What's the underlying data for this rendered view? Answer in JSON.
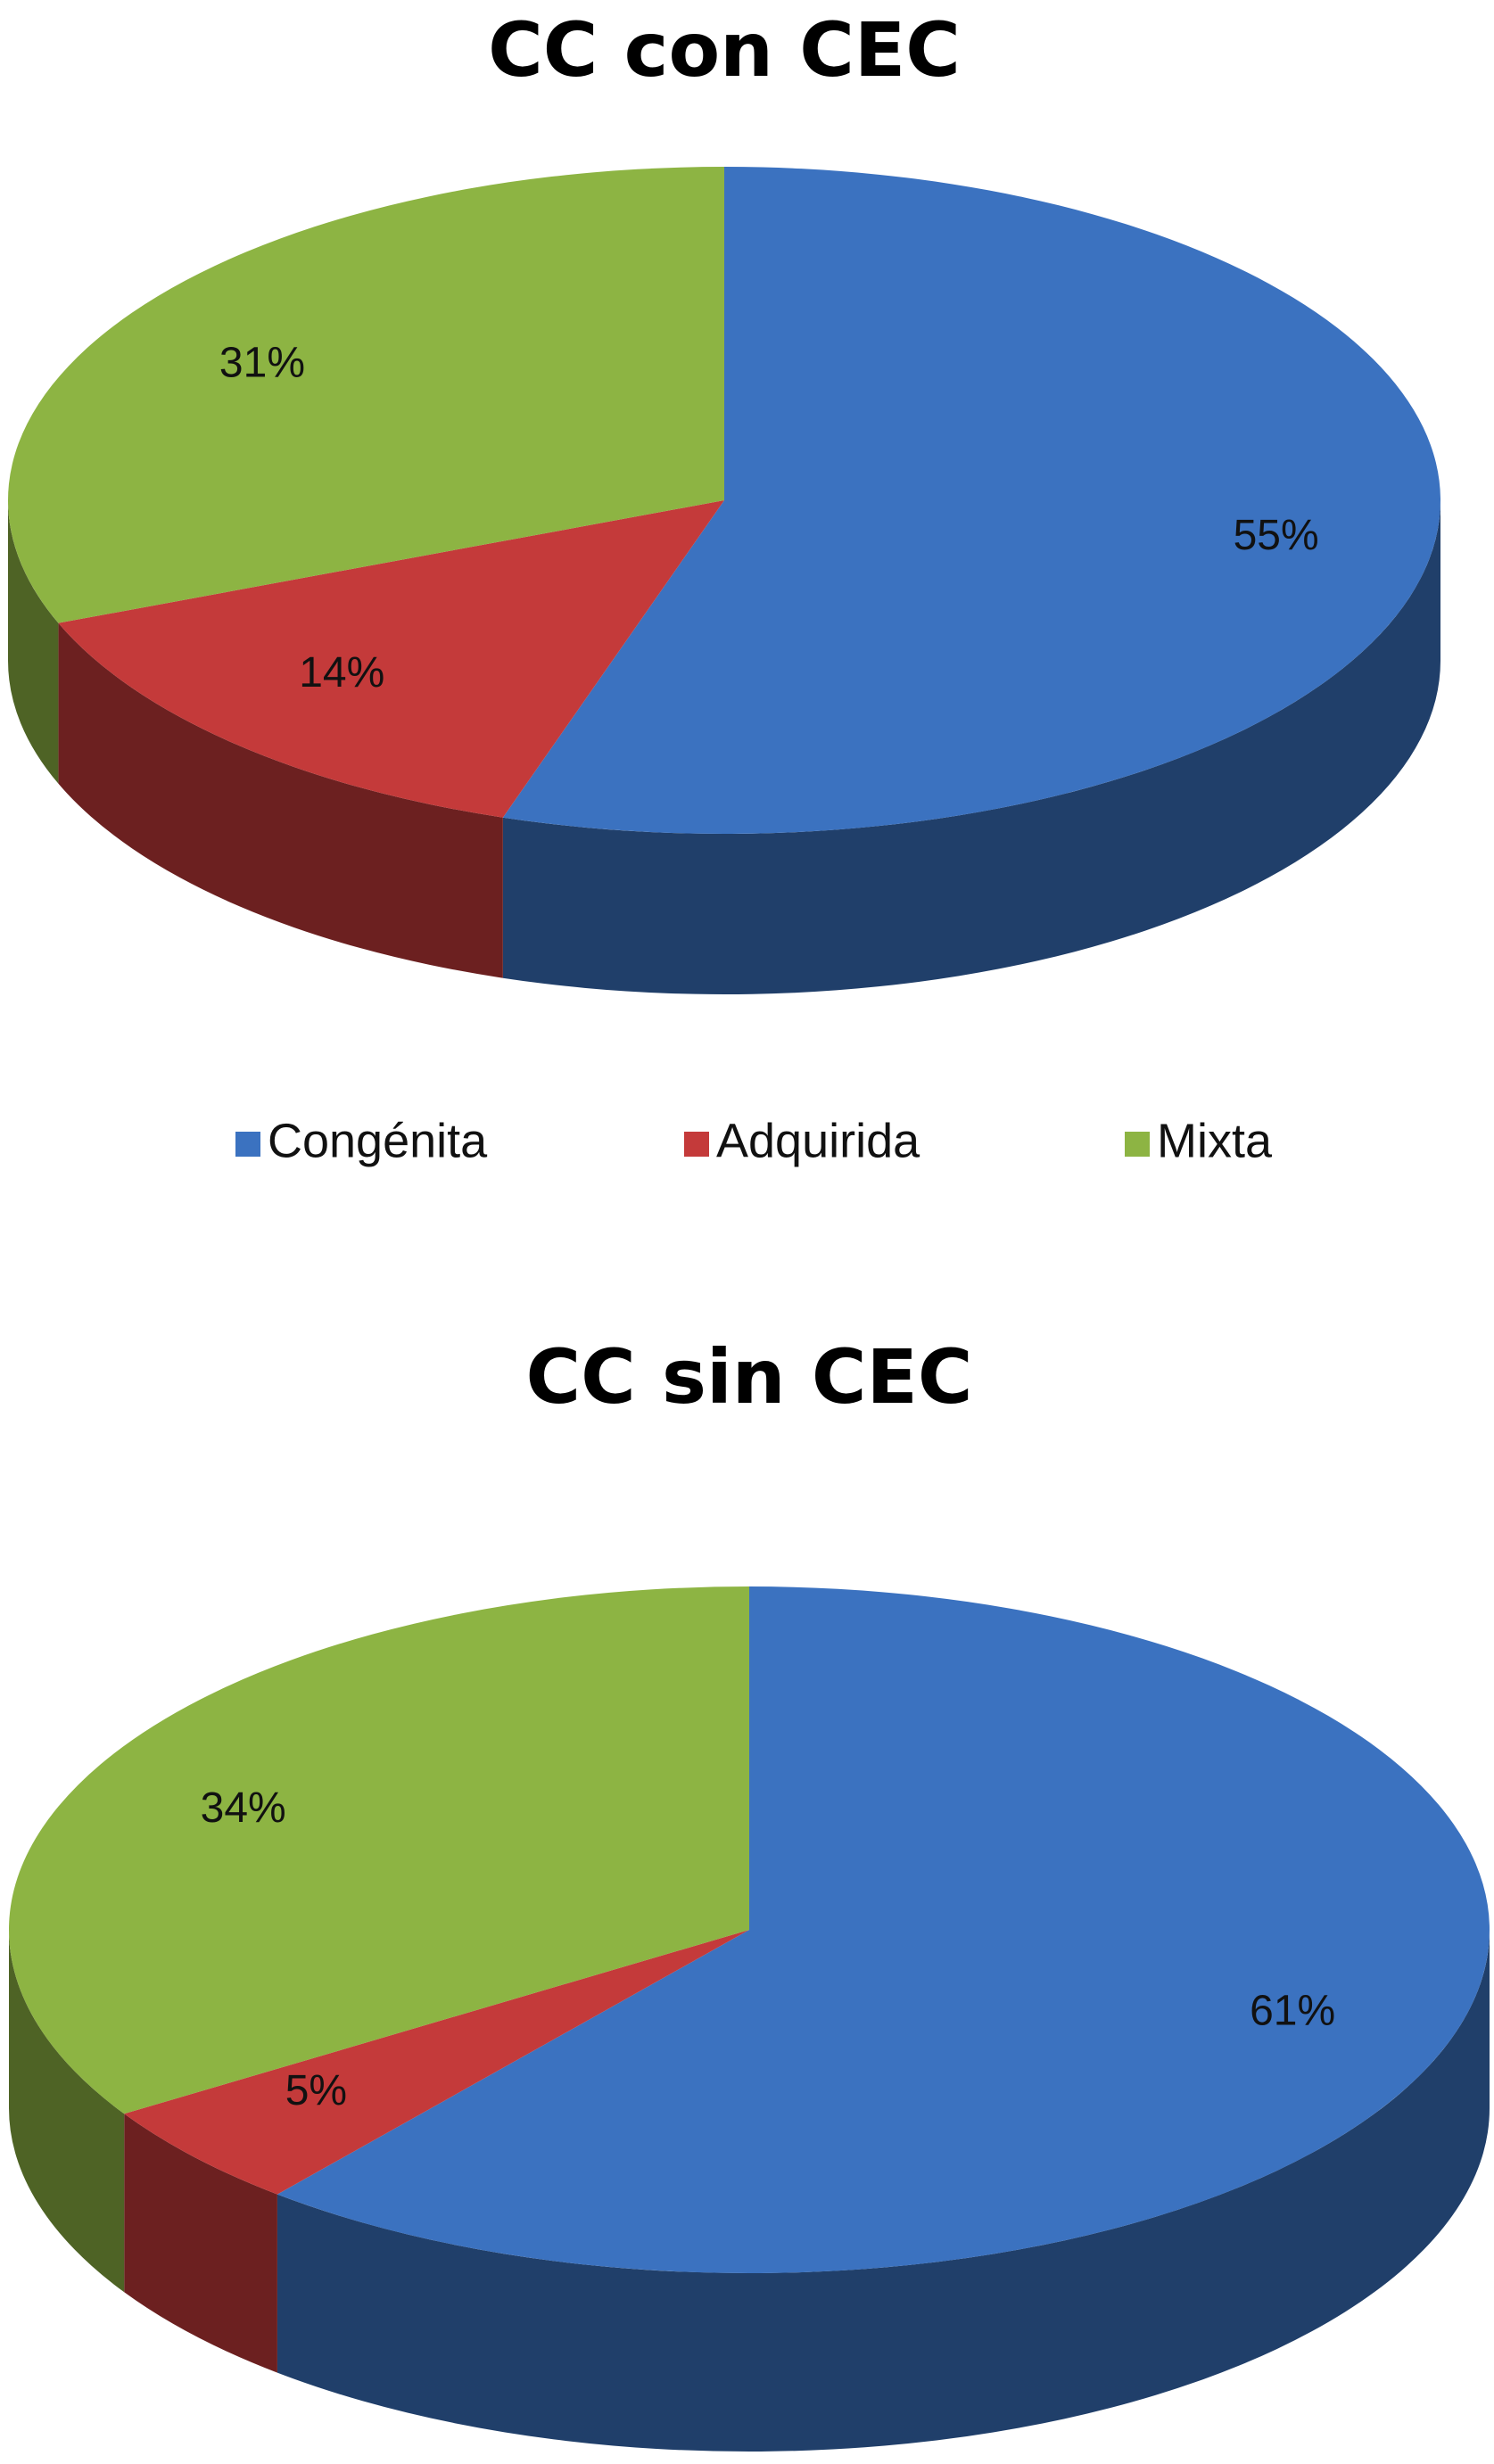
{
  "chart_data": [
    {
      "type": "pie",
      "title": "CC con CEC",
      "values": [
        55,
        14,
        31
      ],
      "value_labels": [
        "55%",
        "14%",
        "31%"
      ]
    },
    {
      "type": "pie",
      "title": "CC sin CEC",
      "values": [
        61,
        5,
        34
      ],
      "value_labels": [
        "61%",
        "5%",
        "34%"
      ]
    }
  ],
  "legend": {
    "labels": [
      "Congénita",
      "Adquirida",
      "Mixta"
    ],
    "colors": [
      "#3b72c0",
      "#c43a3a",
      "#8db443"
    ]
  }
}
